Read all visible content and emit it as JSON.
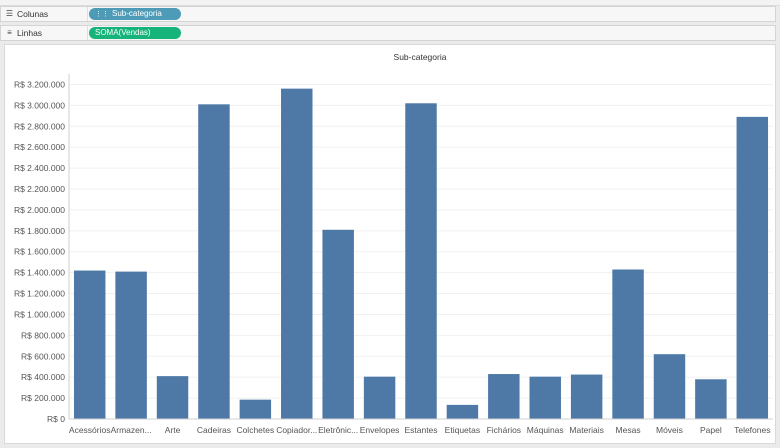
{
  "shelves": {
    "columns": {
      "label": "Colunas",
      "pill": "Sub-categoria"
    },
    "rows": {
      "label": "Linhas",
      "pill": "SOMA(Vendas)"
    }
  },
  "colors": {
    "bar": "#4e79a7",
    "dimension_pill": "#4d9bb7",
    "measure_pill": "#16b37a",
    "grid": "#f0f0f0"
  },
  "chart_data": {
    "type": "bar",
    "title": "Sub-categoria",
    "categories": [
      "Acessórios",
      "Armazen...",
      "Arte",
      "Cadeiras",
      "Colchetes",
      "Copiador...",
      "Eletrônic...",
      "Envelopes",
      "Estantes",
      "Etiquetas",
      "Fichários",
      "Máquinas",
      "Materiais",
      "Mesas",
      "Móveis",
      "Papel",
      "Telefones"
    ],
    "values": [
      1420000,
      1410000,
      410000,
      3010000,
      185000,
      3160000,
      1810000,
      405000,
      3020000,
      135000,
      430000,
      405000,
      425000,
      1430000,
      620000,
      380000,
      2890000
    ],
    "ylim": [
      0,
      3300000
    ],
    "ytick_values": [
      0,
      200000,
      400000,
      600000,
      800000,
      1000000,
      1200000,
      1400000,
      1600000,
      1800000,
      2000000,
      2200000,
      2400000,
      2600000,
      2800000,
      3000000,
      3200000
    ],
    "ytick_labels": [
      "R$ 0",
      "R$ 200.000",
      "R$ 400.000",
      "R$ 600.000",
      "R$ 800.000",
      "R$ 1.000.000",
      "R$ 1.200.000",
      "R$ 1.400.000",
      "R$ 1.600.000",
      "R$ 1.800.000",
      "R$ 2.000.000",
      "R$ 2.200.000",
      "R$ 2.400.000",
      "R$ 2.600.000",
      "R$ 2.800.000",
      "R$ 3.000.000",
      "R$ 3.200.000"
    ],
    "grid": true,
    "xlabel": "",
    "ylabel": ""
  }
}
